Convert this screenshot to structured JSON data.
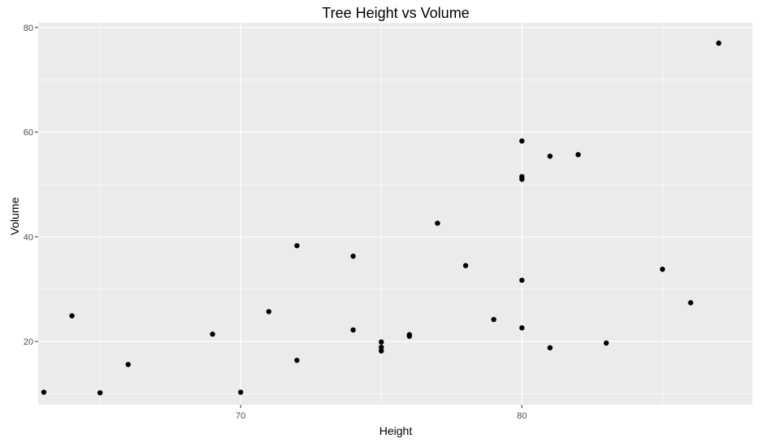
{
  "chart_data": {
    "type": "scatter",
    "title": "Tree Height vs Volume",
    "xlabel": "Height",
    "ylabel": "Volume",
    "xlim": [
      62.8,
      88.2
    ],
    "ylim": [
      7.9,
      80.9
    ],
    "xticks": [
      70,
      80
    ],
    "yticks": [
      20,
      40,
      60,
      80
    ],
    "grid": true,
    "colors": {
      "panel": "#EBEBEB",
      "grid": "#FFFFFF",
      "point": "#000000",
      "tick": "#4D4D4D"
    },
    "series": [
      {
        "points": [
          {
            "x": 63,
            "y": 10.3
          },
          {
            "x": 64,
            "y": 24.9
          },
          {
            "x": 65,
            "y": 10.2
          },
          {
            "x": 66,
            "y": 15.6
          },
          {
            "x": 69,
            "y": 21.4
          },
          {
            "x": 70,
            "y": 10.3
          },
          {
            "x": 71,
            "y": 25.7
          },
          {
            "x": 72,
            "y": 16.4
          },
          {
            "x": 72,
            "y": 38.3
          },
          {
            "x": 74,
            "y": 36.3
          },
          {
            "x": 74,
            "y": 22.2
          },
          {
            "x": 75,
            "y": 19.9
          },
          {
            "x": 75,
            "y": 18.9
          },
          {
            "x": 75,
            "y": 18.2
          },
          {
            "x": 76,
            "y": 21.3
          },
          {
            "x": 76,
            "y": 21.0
          },
          {
            "x": 77,
            "y": 42.6
          },
          {
            "x": 78,
            "y": 34.5
          },
          {
            "x": 79,
            "y": 24.2
          },
          {
            "x": 80,
            "y": 58.3
          },
          {
            "x": 80,
            "y": 51.5
          },
          {
            "x": 80,
            "y": 51.0
          },
          {
            "x": 80,
            "y": 31.7
          },
          {
            "x": 80,
            "y": 22.6
          },
          {
            "x": 81,
            "y": 55.4
          },
          {
            "x": 81,
            "y": 18.8
          },
          {
            "x": 82,
            "y": 55.7
          },
          {
            "x": 83,
            "y": 19.7
          },
          {
            "x": 85,
            "y": 33.8
          },
          {
            "x": 86,
            "y": 27.4
          },
          {
            "x": 87,
            "y": 77.0
          }
        ]
      }
    ]
  }
}
